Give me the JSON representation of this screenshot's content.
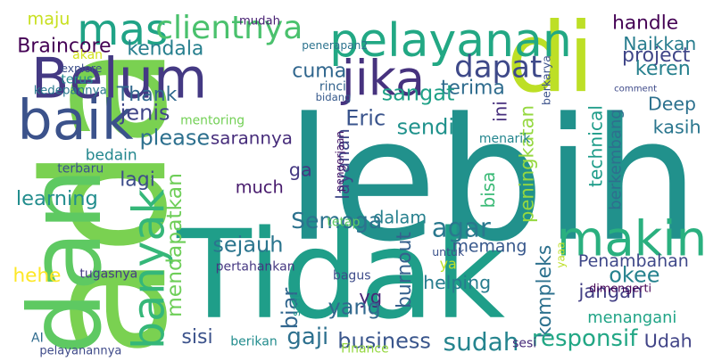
{
  "words": [
    {
      "text": "ada",
      "color": "#7ad151",
      "rot": -90
    },
    {
      "text": "lebih",
      "color": "#21918c",
      "rot": 0
    },
    {
      "text": "dan",
      "color": "#5ec962",
      "rot": -90
    },
    {
      "text": "di",
      "color": "#bddf26",
      "rot": 0
    },
    {
      "text": "Tidak",
      "color": "#1f9e89",
      "rot": 0
    },
    {
      "text": "pelayanan",
      "color": "#22a884",
      "rot": 0
    },
    {
      "text": "Belum",
      "color": "#443983",
      "rot": 0
    },
    {
      "text": "jika",
      "color": "#46327e",
      "rot": 0
    },
    {
      "text": "makin",
      "color": "#2ab07f",
      "rot": 0
    },
    {
      "text": "baik",
      "color": "#3b528b",
      "rot": 0
    },
    {
      "text": "banyak",
      "color": "#35b779",
      "rot": -90
    },
    {
      "text": "mas",
      "color": "#20a386",
      "rot": 0
    },
    {
      "text": "clientnya",
      "color": "#4ac16d",
      "rot": 0
    },
    {
      "text": "dapat",
      "color": "#3e4989",
      "rot": 0
    },
    {
      "text": "Semoga",
      "color": "#2c728e",
      "rot": 0
    },
    {
      "text": "agar",
      "color": "#2a788e",
      "rot": 0
    },
    {
      "text": "sudah",
      "color": "#25848e",
      "rot": 0
    },
    {
      "text": "kendala",
      "color": "#277f8e",
      "rot": 0
    },
    {
      "text": "Braincore",
      "color": "#440154",
      "rot": 0
    },
    {
      "text": "maju",
      "color": "#c8e020",
      "rot": 0
    },
    {
      "text": "handle",
      "color": "#440154",
      "rot": 0
    },
    {
      "text": "Naikkan",
      "color": "#287d8e",
      "rot": 0
    },
    {
      "text": "project",
      "color": "#404688",
      "rot": 0
    },
    {
      "text": "berkarya",
      "color": "#3b528b",
      "rot": -90
    },
    {
      "text": "keren",
      "color": "#27808e",
      "rot": 0
    },
    {
      "text": "terima",
      "color": "#2f6c8e",
      "rot": 0
    },
    {
      "text": "cuma",
      "color": "#31678e",
      "rot": 0
    },
    {
      "text": "sangat",
      "color": "#1fa187",
      "rot": 0
    },
    {
      "text": "Thank",
      "color": "#31688e",
      "rot": 0
    },
    {
      "text": "jenis",
      "color": "#404588",
      "rot": 0
    },
    {
      "text": "please",
      "color": "#2d708e",
      "rot": 0
    },
    {
      "text": "sarannya",
      "color": "#472d7b",
      "rot": 0
    },
    {
      "text": "Eric",
      "color": "#3a548c",
      "rot": 0
    },
    {
      "text": "layanan",
      "color": "#3f4788",
      "rot": -90
    },
    {
      "text": "sendiri",
      "color": "#20928c",
      "rot": 0
    },
    {
      "text": "ini",
      "color": "#472f7d",
      "rot": -90
    },
    {
      "text": "peningkatan",
      "color": "#95d840",
      "rot": -90
    },
    {
      "text": "technical",
      "color": "#1e9c89",
      "rot": -90
    },
    {
      "text": "berkembang",
      "color": "#2e6f8e",
      "rot": -90
    },
    {
      "text": "Deep",
      "color": "#2c718e",
      "rot": 0
    },
    {
      "text": "kasih",
      "color": "#2a768e",
      "rot": 0
    },
    {
      "text": "bedain",
      "color": "#24878e",
      "rot": 0
    },
    {
      "text": "lagi",
      "color": "#3d4d8a",
      "rot": 0
    },
    {
      "text": "ga",
      "color": "#453882",
      "rot": 0
    },
    {
      "text": "much",
      "color": "#481b6d",
      "rot": 0
    },
    {
      "text": "learning",
      "color": "#228d8d",
      "rot": 0
    },
    {
      "text": "mendapatkan",
      "color": "#6ece58",
      "rot": -90
    },
    {
      "text": "bisa",
      "color": "#3aba76",
      "rot": -90
    },
    {
      "text": "dalam",
      "color": "#27808e",
      "rot": 0
    },
    {
      "text": "sejauh",
      "color": "#2b758e",
      "rot": 0
    },
    {
      "text": "memang",
      "color": "#38588c",
      "rot": 0
    },
    {
      "text": "Penambahan",
      "color": "#3f4889",
      "rot": 0
    },
    {
      "text": "okee",
      "color": "#26828e",
      "rot": 0
    },
    {
      "text": "jangan",
      "color": "#423f85",
      "rot": 0
    },
    {
      "text": "menangani",
      "color": "#20a486",
      "rot": 0
    },
    {
      "text": "burnout",
      "color": "#35608d",
      "rot": -90
    },
    {
      "text": "helping",
      "color": "#287c8e",
      "rot": 0
    },
    {
      "text": "kompleks",
      "color": "#2d718e",
      "rot": -90
    },
    {
      "text": "biar",
      "color": "#31668e",
      "rot": -90
    },
    {
      "text": "yg",
      "color": "#482878",
      "rot": 0
    },
    {
      "text": "yang",
      "color": "#31688e",
      "rot": 0
    },
    {
      "text": "hehe",
      "color": "#fde725",
      "rot": 0
    },
    {
      "text": "sisi",
      "color": "#3b528b",
      "rot": 0
    },
    {
      "text": "gaji",
      "color": "#2d708e",
      "rot": 0
    },
    {
      "text": "business",
      "color": "#39558c",
      "rot": 0
    },
    {
      "text": "responsif",
      "color": "#22a785",
      "rot": 0
    },
    {
      "text": "Udah",
      "color": "#414487",
      "rot": 0
    },
    {
      "text": "mudah",
      "color": "#482173",
      "rot": 0
    },
    {
      "text": "penerapan2",
      "color": "#2c738e",
      "rot": 0
    },
    {
      "text": "akan",
      "color": "#d2e21b",
      "rot": 0
    },
    {
      "text": "explore",
      "color": "#3c4f8a",
      "rot": 0
    },
    {
      "text": "terus",
      "color": "#23898e",
      "rot": 0
    },
    {
      "text": "kedepannya",
      "color": "#2a788e",
      "rot": 0
    },
    {
      "text": "rinci",
      "color": "#33638d",
      "rot": 0
    },
    {
      "text": "bidang",
      "color": "#375a8c",
      "rot": 0
    },
    {
      "text": "mentoring",
      "color": "#73d056",
      "rot": 0
    },
    {
      "text": "terbaru",
      "color": "#3b528b",
      "rot": 0
    },
    {
      "text": "pengerjaan",
      "color": "#481769",
      "rot": -90
    },
    {
      "text": "menarik",
      "color": "#24868e",
      "rot": 0
    },
    {
      "text": "comment",
      "color": "#3e4a89",
      "rot": 0
    },
    {
      "text": "tetap",
      "color": "#5ec962",
      "rot": 0
    },
    {
      "text": "yaaa",
      "color": "#bddf26",
      "rot": -90
    },
    {
      "text": "pertahankan",
      "color": "#453781",
      "rot": 0
    },
    {
      "text": "tugasnya",
      "color": "#443b84",
      "rot": 0
    },
    {
      "text": "untuk",
      "color": "#3b528b",
      "rot": 0
    },
    {
      "text": "ya",
      "color": "#bddf26",
      "rot": 0
    },
    {
      "text": "saat",
      "color": "#1f958b",
      "rot": -90
    },
    {
      "text": "dimengerti",
      "color": "#440154",
      "rot": 0
    },
    {
      "text": "bagus",
      "color": "#3e4c8a",
      "rot": 0
    },
    {
      "text": "AI",
      "color": "#2f6b8e",
      "rot": 0
    },
    {
      "text": "pelayanannya",
      "color": "#3e4a89",
      "rot": 0
    },
    {
      "text": "berikan",
      "color": "#228c8d",
      "rot": 0
    },
    {
      "text": "Finance",
      "color": "#95d840",
      "rot": 0
    },
    {
      "text": "sesi",
      "color": "#472a7a",
      "rot": 0
    }
  ]
}
